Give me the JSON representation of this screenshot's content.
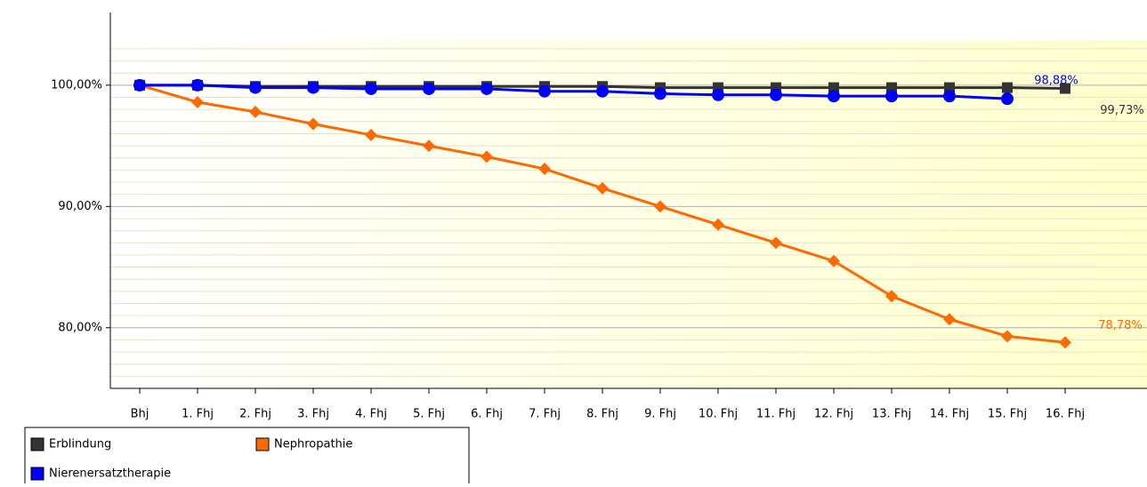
{
  "chart_data": {
    "type": "line",
    "categories": [
      "Bhj",
      "1. Fhj",
      "2. Fhj",
      "3. Fhj",
      "4. Fhj",
      "5. Fhj",
      "6. Fhj",
      "7. Fhj",
      "8. Fhj",
      "9. Fhj",
      "10. Fhj",
      "11. Fhj",
      "12. Fhj",
      "13. Fhj",
      "14. Fhj",
      "15. Fhj",
      "16. Fhj"
    ],
    "series": [
      {
        "name": "Erblindung",
        "color": "#333333",
        "marker": "square",
        "values": [
          100,
          100,
          99.9,
          99.9,
          99.9,
          99.9,
          99.9,
          99.9,
          99.9,
          99.8,
          99.8,
          99.8,
          99.8,
          99.8,
          99.8,
          99.8,
          99.73
        ],
        "value_labels": [
          null,
          null,
          null,
          null,
          null,
          null,
          null,
          null,
          null,
          null,
          null,
          null,
          null,
          null,
          null,
          null,
          "99,73%"
        ]
      },
      {
        "name": "Nephropathie",
        "color": "#ff6a00",
        "marker": "diamond",
        "values": [
          100,
          98.6,
          97.8,
          96.8,
          95.9,
          95.0,
          94.1,
          93.1,
          91.5,
          90.0,
          88.5,
          87.0,
          85.5,
          82.6,
          80.7,
          79.3,
          78.78
        ],
        "value_labels": [
          null,
          null,
          null,
          null,
          null,
          null,
          null,
          null,
          null,
          null,
          null,
          null,
          null,
          null,
          null,
          null,
          "78,78%"
        ]
      },
      {
        "name": "Nierenersatztherapie",
        "color": "#0000ff",
        "marker": "circle",
        "values": [
          100,
          100,
          99.8,
          99.8,
          99.7,
          99.7,
          99.7,
          99.5,
          99.5,
          99.3,
          99.2,
          99.2,
          99.1,
          99.1,
          99.1,
          98.88,
          null
        ],
        "value_labels": [
          null,
          null,
          null,
          null,
          null,
          null,
          null,
          null,
          null,
          null,
          null,
          null,
          null,
          null,
          null,
          "98,88%",
          null
        ]
      }
    ],
    "ylim": [
      75,
      106
    ],
    "yticks": [
      {
        "value": 80,
        "label": "80,00%"
      },
      {
        "value": 90,
        "label": "90,00%"
      },
      {
        "value": 100,
        "label": "100,00%"
      }
    ],
    "grid": true
  }
}
